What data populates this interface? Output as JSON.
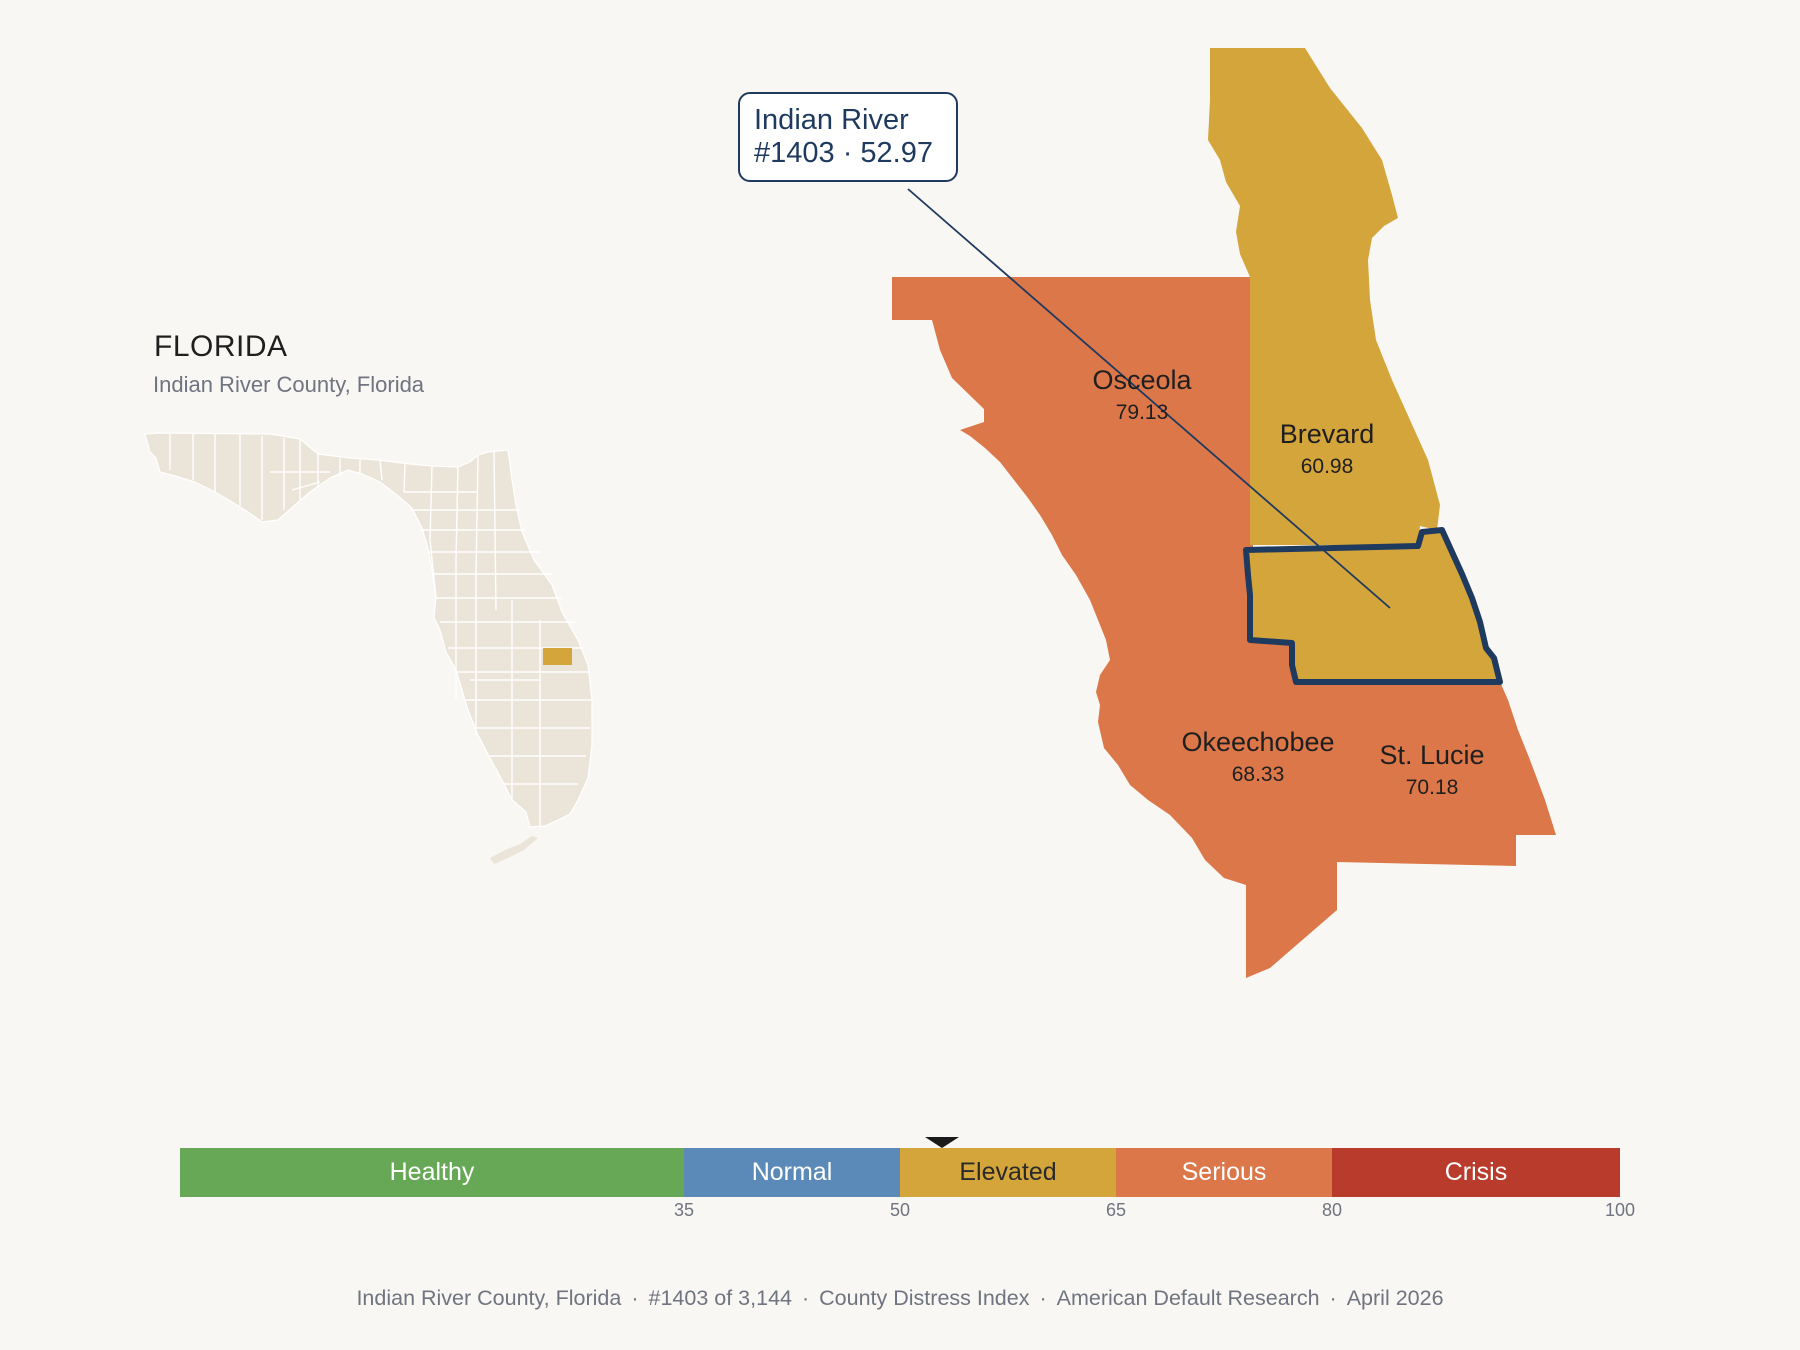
{
  "inset": {
    "title": "FLORIDA",
    "subtitle": "Indian River County, Florida"
  },
  "callout": {
    "line1": "Indian River",
    "line2": "#1403 · 52.97"
  },
  "counties": [
    {
      "name": "Osceola",
      "score": "79.13",
      "band": "Serious",
      "color": "#dc774a"
    },
    {
      "name": "Brevard",
      "score": "60.98",
      "band": "Elevated",
      "color": "#d4a53b"
    },
    {
      "name": "Okeechobee",
      "score": "68.33",
      "band": "Serious",
      "color": "#dc774a"
    },
    {
      "name": "St. Lucie",
      "score": "70.18",
      "band": "Serious",
      "color": "#dc774a"
    },
    {
      "name": "Indian River",
      "score": "52.97",
      "band": "Elevated",
      "color": "#d4a53b",
      "highlighted": true
    }
  ],
  "scale": {
    "min": 0,
    "max": 100,
    "marker_value": 52.97,
    "segments": [
      {
        "label": "Healthy",
        "from": 0,
        "to": 35,
        "color": "#67a857"
      },
      {
        "label": "Normal",
        "from": 35,
        "to": 50,
        "color": "#5b8ab9"
      },
      {
        "label": "Elevated",
        "from": 50,
        "to": 65,
        "color": "#d4a53b"
      },
      {
        "label": "Serious",
        "from": 65,
        "to": 80,
        "color": "#dc774a"
      },
      {
        "label": "Crisis",
        "from": 80,
        "to": 100,
        "color": "#b93b2b"
      }
    ],
    "ticks": [
      "35",
      "50",
      "65",
      "80",
      "100"
    ]
  },
  "colors": {
    "background": "#f9f7f3",
    "inset_fill": "#ebe5d9",
    "highlight_outline": "#1f3a5f"
  },
  "footer": {
    "county": "Indian River County, Florida",
    "rank": "#1403 of 3,144",
    "index": "County Distress Index",
    "source": "American Default Research",
    "date": "April 2026"
  }
}
